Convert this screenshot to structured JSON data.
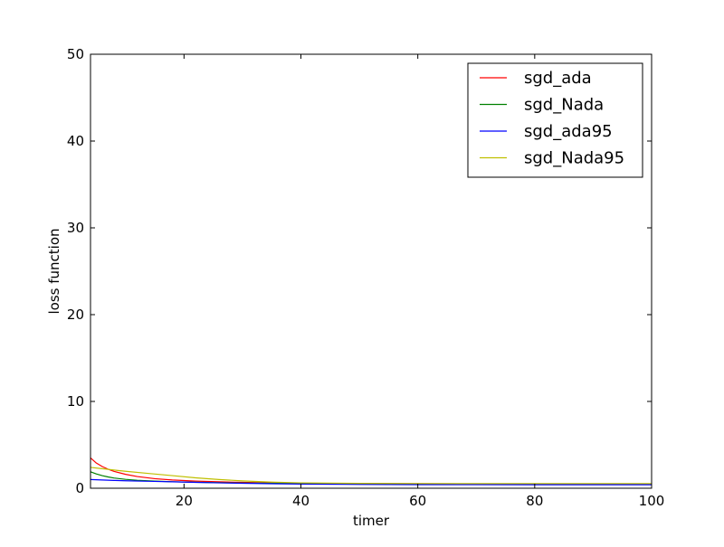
{
  "chart_data": {
    "type": "line",
    "title": "",
    "xlabel": "timer",
    "ylabel": "loss function",
    "xlim": [
      4,
      100
    ],
    "ylim": [
      0,
      50
    ],
    "xticks": [
      20,
      40,
      60,
      80,
      100
    ],
    "xtick_labels": [
      "20",
      "40",
      "60",
      "80",
      "100"
    ],
    "yticks": [
      0,
      10,
      20,
      30,
      40,
      50
    ],
    "ytick_labels": [
      "0",
      "10",
      "20",
      "30",
      "40",
      "50"
    ],
    "grid": false,
    "legend_position": "top-right",
    "series": [
      {
        "name": "sgd_ada",
        "color": "#ff0000",
        "x": [
          4,
          5,
          6,
          7,
          8,
          10,
          12,
          15,
          18,
          22,
          26,
          30,
          35,
          40,
          50,
          60,
          70,
          80,
          90,
          100
        ],
        "y": [
          3.5,
          2.9,
          2.5,
          2.2,
          1.95,
          1.6,
          1.35,
          1.1,
          0.95,
          0.82,
          0.74,
          0.68,
          0.62,
          0.58,
          0.54,
          0.52,
          0.51,
          0.5,
          0.5,
          0.5
        ]
      },
      {
        "name": "sgd_Nada",
        "color": "#008000",
        "x": [
          4,
          5,
          6,
          7,
          8,
          10,
          12,
          15,
          18,
          22,
          26,
          30,
          35,
          40,
          50,
          60,
          70,
          80,
          90,
          100
        ],
        "y": [
          1.9,
          1.65,
          1.45,
          1.3,
          1.18,
          1.02,
          0.92,
          0.82,
          0.75,
          0.69,
          0.64,
          0.6,
          0.57,
          0.55,
          0.52,
          0.51,
          0.5,
          0.5,
          0.5,
          0.5
        ]
      },
      {
        "name": "sgd_ada95",
        "color": "#0000ff",
        "x": [
          4,
          6,
          8,
          10,
          14,
          18,
          22,
          26,
          30,
          35,
          40,
          50,
          60,
          70,
          80,
          90,
          100
        ],
        "y": [
          1.0,
          0.95,
          0.9,
          0.86,
          0.8,
          0.74,
          0.68,
          0.62,
          0.57,
          0.52,
          0.48,
          0.44,
          0.42,
          0.41,
          0.4,
          0.4,
          0.4
        ]
      },
      {
        "name": "sgd_Nada95",
        "color": "#bfbf00",
        "x": [
          4,
          6,
          8,
          10,
          14,
          18,
          22,
          26,
          30,
          35,
          40,
          50,
          60,
          70,
          80,
          90,
          100
        ],
        "y": [
          2.4,
          2.25,
          2.1,
          1.95,
          1.7,
          1.45,
          1.2,
          1.0,
          0.85,
          0.7,
          0.62,
          0.56,
          0.54,
          0.53,
          0.53,
          0.53,
          0.53
        ]
      }
    ]
  }
}
